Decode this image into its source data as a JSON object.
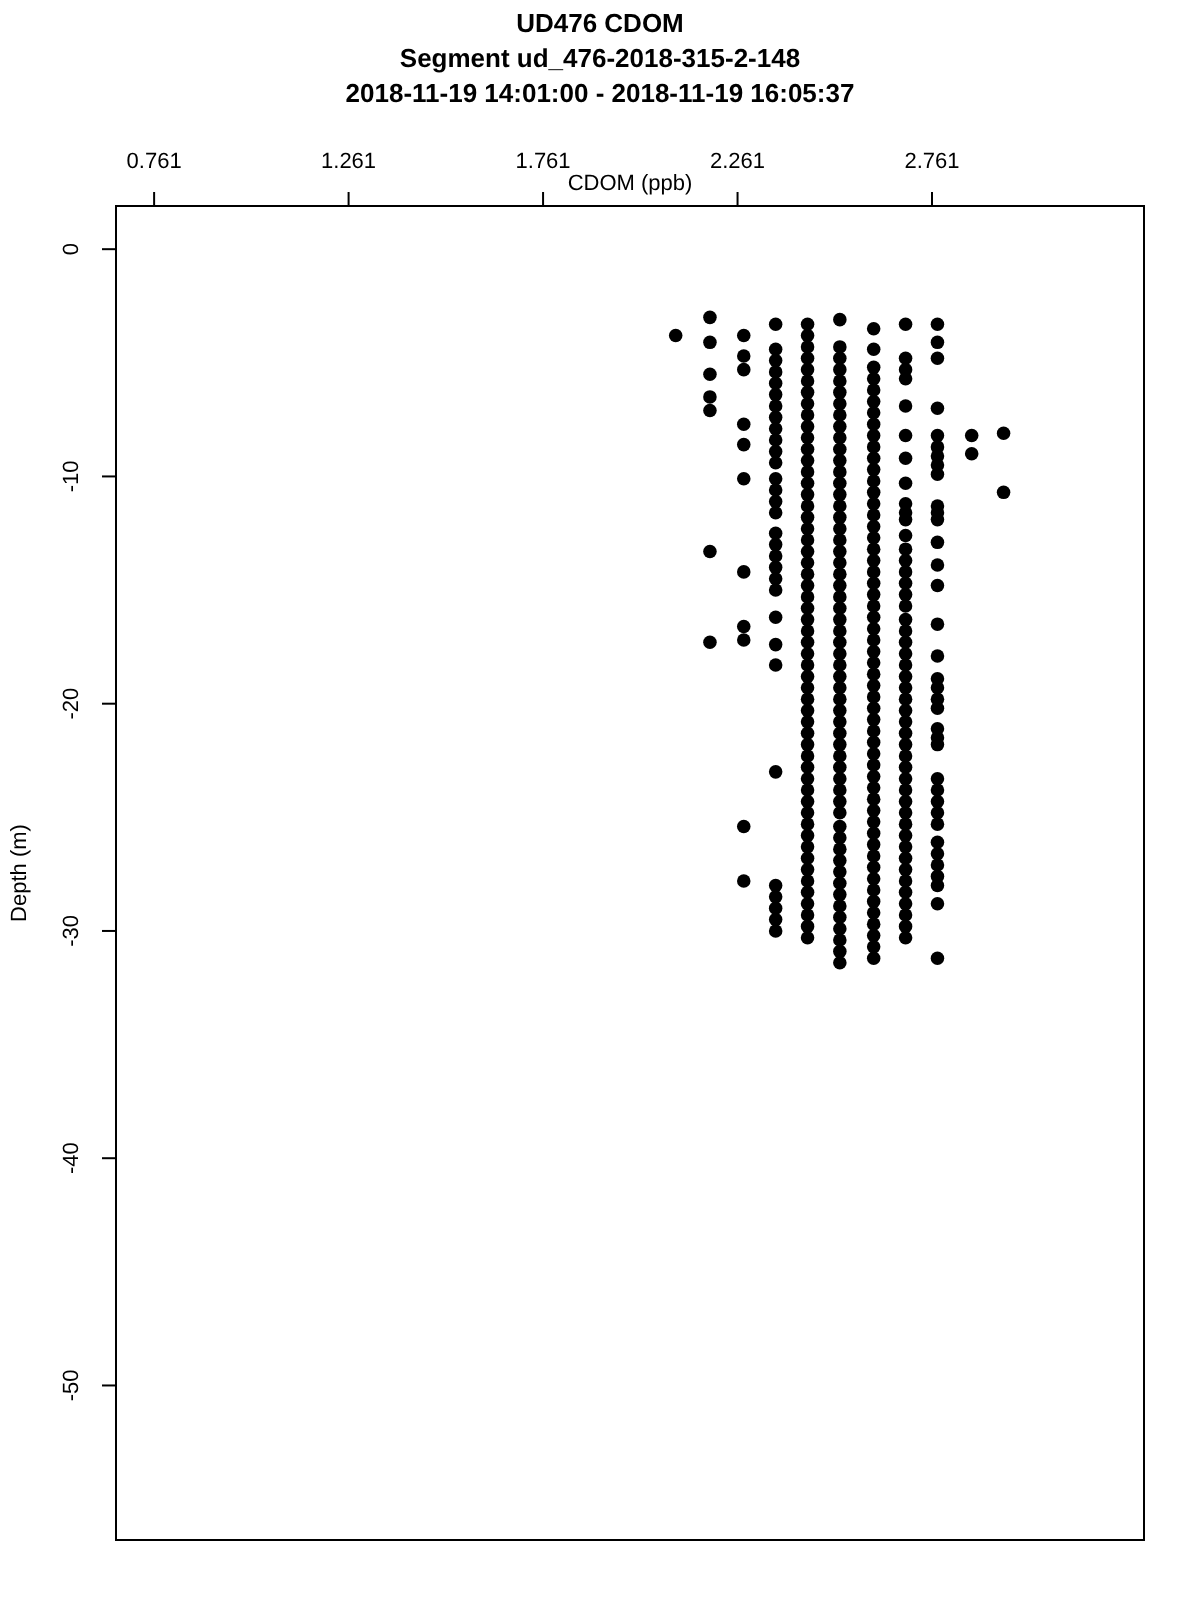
{
  "chart_data": {
    "type": "scatter",
    "title": "UD476 CDOM",
    "subtitle": "Segment ud_476-2018-315-2-148\n2018-11-19 14:01:00 - 2018-11-19 16:05:37",
    "xlabel": "CDOM (ppb)",
    "ylabel": "Depth (m)",
    "xlim": [
      0.663,
      3.306
    ],
    "xticks": [
      0.761,
      1.261,
      1.761,
      2.261,
      2.761
    ],
    "ylim": [
      -56.8,
      1.9
    ],
    "yticks": [
      0,
      -10,
      -20,
      -30,
      -40,
      -50
    ],
    "grid": false,
    "marker": "circle",
    "series": [
      {
        "color": "#000000",
        "x": [
          2.102
        ],
        "values": [
          -3.8
        ]
      },
      {
        "color": "#000000",
        "x": [
          2.19,
          2.19,
          2.19,
          2.19,
          2.19,
          2.19,
          2.19
        ],
        "values": [
          -3.0,
          -4.1,
          -5.5,
          -6.5,
          -7.1,
          -13.3,
          -17.3
        ]
      },
      {
        "color": "#000000",
        "x": [
          2.277,
          2.277,
          2.277,
          2.277,
          2.277,
          2.277,
          2.277,
          2.277,
          2.277,
          2.277,
          2.277
        ],
        "values": [
          -3.8,
          -4.7,
          -5.3,
          -7.7,
          -8.6,
          -10.1,
          -14.2,
          -16.6,
          -17.2,
          -25.4,
          -27.8
        ]
      },
      {
        "color": "#000000",
        "x": [
          2.359,
          2.359,
          2.359,
          2.359,
          2.359,
          2.359,
          2.359,
          2.359,
          2.359,
          2.359,
          2.359,
          2.359,
          2.359,
          2.359,
          2.359,
          2.359,
          2.359,
          2.359,
          2.359,
          2.359,
          2.359,
          2.359,
          2.359,
          2.359,
          2.359,
          2.359,
          2.359,
          2.359,
          2.359,
          2.359,
          2.359
        ],
        "values": [
          -3.3,
          -4.4,
          -4.9,
          -5.4,
          -5.9,
          -6.4,
          -6.9,
          -7.4,
          -7.9,
          -8.4,
          -8.9,
          -9.4,
          -10.1,
          -10.6,
          -11.1,
          -11.6,
          -12.5,
          -13.0,
          -13.5,
          -14.0,
          -14.5,
          -15.0,
          -16.2,
          -17.4,
          -18.3,
          -23.0,
          -28.0,
          -28.5,
          -29.0,
          -29.5,
          -30.0
        ]
      },
      {
        "color": "#000000",
        "x": [
          2.441,
          2.441,
          2.441,
          2.441,
          2.441,
          2.441,
          2.441,
          2.441,
          2.441,
          2.441,
          2.441,
          2.441,
          2.441,
          2.441,
          2.441,
          2.441,
          2.441,
          2.441,
          2.441,
          2.441,
          2.441,
          2.441,
          2.441,
          2.441,
          2.441,
          2.441,
          2.441,
          2.441,
          2.441,
          2.441,
          2.441,
          2.441,
          2.441,
          2.441,
          2.441,
          2.441,
          2.441,
          2.441,
          2.441,
          2.441,
          2.441,
          2.441,
          2.441,
          2.441,
          2.441,
          2.441,
          2.441,
          2.441,
          2.441,
          2.441,
          2.441,
          2.441,
          2.441,
          2.441,
          2.441
        ],
        "values": [
          -3.3,
          -3.8,
          -4.3,
          -4.8,
          -5.3,
          -5.8,
          -6.3,
          -6.8,
          -7.3,
          -7.8,
          -8.3,
          -8.8,
          -9.3,
          -9.8,
          -10.3,
          -10.8,
          -11.3,
          -11.8,
          -12.3,
          -12.8,
          -13.3,
          -13.8,
          -14.3,
          -14.8,
          -15.3,
          -15.8,
          -16.3,
          -16.8,
          -17.3,
          -17.8,
          -18.3,
          -18.8,
          -19.3,
          -19.8,
          -20.3,
          -20.8,
          -21.3,
          -21.8,
          -22.3,
          -22.8,
          -23.3,
          -23.8,
          -24.3,
          -24.8,
          -25.3,
          -25.8,
          -26.3,
          -26.8,
          -27.3,
          -27.8,
          -28.3,
          -28.8,
          -29.3,
          -29.8,
          -30.3
        ]
      },
      {
        "color": "#000000",
        "x": [
          2.524,
          2.524,
          2.524,
          2.524,
          2.524,
          2.524,
          2.524,
          2.524,
          2.524,
          2.524,
          2.524,
          2.524,
          2.524,
          2.524,
          2.524,
          2.524,
          2.524,
          2.524,
          2.524,
          2.524,
          2.524,
          2.524,
          2.524,
          2.524,
          2.524,
          2.524,
          2.524,
          2.524,
          2.524,
          2.524,
          2.524,
          2.524,
          2.524,
          2.524,
          2.524,
          2.524,
          2.524,
          2.524,
          2.524,
          2.524,
          2.524,
          2.524,
          2.524,
          2.524,
          2.524,
          2.524,
          2.524,
          2.524,
          2.524,
          2.524,
          2.524,
          2.524,
          2.524,
          2.524,
          2.524,
          2.524
        ],
        "values": [
          -3.1,
          -4.3,
          -4.8,
          -5.3,
          -5.8,
          -6.3,
          -6.8,
          -7.3,
          -7.8,
          -8.3,
          -8.8,
          -9.3,
          -9.8,
          -10.3,
          -10.8,
          -11.3,
          -11.8,
          -12.3,
          -12.8,
          -13.3,
          -13.8,
          -14.3,
          -14.8,
          -15.3,
          -15.8,
          -16.3,
          -16.8,
          -17.3,
          -17.8,
          -18.3,
          -18.8,
          -19.3,
          -19.8,
          -20.3,
          -20.8,
          -21.3,
          -21.8,
          -22.3,
          -22.8,
          -23.3,
          -23.8,
          -24.3,
          -24.8,
          -25.4,
          -25.9,
          -26.4,
          -26.9,
          -27.4,
          -27.9,
          -28.4,
          -28.9,
          -29.4,
          -29.9,
          -30.4,
          -30.9,
          -31.4
        ]
      },
      {
        "color": "#000000",
        "x": [
          2.611,
          2.611,
          2.611,
          2.611,
          2.611,
          2.611,
          2.611,
          2.611,
          2.611,
          2.611,
          2.611,
          2.611,
          2.611,
          2.611,
          2.611,
          2.611,
          2.611,
          2.611,
          2.611,
          2.611,
          2.611,
          2.611,
          2.611,
          2.611,
          2.611,
          2.611,
          2.611,
          2.611,
          2.611,
          2.611,
          2.611,
          2.611,
          2.611,
          2.611,
          2.611,
          2.611,
          2.611,
          2.611,
          2.611,
          2.611,
          2.611,
          2.611,
          2.611,
          2.611,
          2.611,
          2.611,
          2.611,
          2.611,
          2.611,
          2.611,
          2.611,
          2.611,
          2.611,
          2.611,
          2.611
        ],
        "values": [
          -3.5,
          -4.4,
          -5.2,
          -5.7,
          -6.2,
          -6.7,
          -7.2,
          -7.7,
          -8.2,
          -8.7,
          -9.2,
          -9.7,
          -10.2,
          -10.7,
          -11.2,
          -11.7,
          -12.2,
          -12.7,
          -13.2,
          -13.7,
          -14.2,
          -14.7,
          -15.2,
          -15.7,
          -16.2,
          -16.7,
          -17.2,
          -17.7,
          -18.2,
          -18.7,
          -19.2,
          -19.7,
          -20.2,
          -20.7,
          -21.2,
          -21.7,
          -22.2,
          -22.7,
          -23.2,
          -23.7,
          -24.2,
          -24.7,
          -25.2,
          -25.7,
          -26.2,
          -26.7,
          -27.2,
          -27.7,
          -28.2,
          -28.7,
          -29.2,
          -29.7,
          -30.2,
          -30.7,
          -31.2
        ]
      },
      {
        "color": "#000000",
        "x": [
          2.693,
          2.693,
          2.693,
          2.693,
          2.693,
          2.693,
          2.693,
          2.693,
          2.693,
          2.693,
          2.693,
          2.693,
          2.693,
          2.693,
          2.693,
          2.693,
          2.693,
          2.693,
          2.693,
          2.693,
          2.693,
          2.693,
          2.693,
          2.693,
          2.693,
          2.693,
          2.693,
          2.693,
          2.693,
          2.693,
          2.693,
          2.693,
          2.693,
          2.693,
          2.693,
          2.693,
          2.693,
          2.693,
          2.693,
          2.693,
          2.693,
          2.693,
          2.693,
          2.693,
          2.693,
          2.693,
          2.693
        ],
        "values": [
          -3.3,
          -4.8,
          -5.3,
          -5.7,
          -6.9,
          -8.2,
          -9.2,
          -10.3,
          -11.2,
          -11.6,
          -11.9,
          -12.6,
          -13.2,
          -13.7,
          -14.2,
          -14.7,
          -15.2,
          -15.7,
          -16.3,
          -16.8,
          -17.3,
          -17.8,
          -18.3,
          -18.8,
          -19.3,
          -19.8,
          -20.3,
          -20.8,
          -21.3,
          -21.8,
          -22.3,
          -22.8,
          -23.3,
          -23.8,
          -24.3,
          -24.8,
          -25.3,
          -25.8,
          -26.3,
          -26.8,
          -27.3,
          -27.8,
          -28.3,
          -28.8,
          -29.3,
          -29.8,
          -30.3
        ]
      },
      {
        "color": "#000000",
        "x": [
          2.775,
          2.775,
          2.775,
          2.775,
          2.775,
          2.775,
          2.775,
          2.775,
          2.775,
          2.775,
          2.775,
          2.775,
          2.775,
          2.775,
          2.775,
          2.775,
          2.775,
          2.775,
          2.775,
          2.775,
          2.775,
          2.775,
          2.775,
          2.775,
          2.775,
          2.775,
          2.775,
          2.775,
          2.775,
          2.775,
          2.775,
          2.775,
          2.775,
          2.775,
          2.775,
          2.775
        ],
        "values": [
          -3.3,
          -4.1,
          -4.8,
          -7.0,
          -8.2,
          -8.7,
          -9.1,
          -9.5,
          -9.9,
          -11.3,
          -11.6,
          -11.9,
          -12.9,
          -13.9,
          -14.8,
          -16.5,
          -17.9,
          -18.9,
          -19.3,
          -19.8,
          -20.2,
          -21.1,
          -21.5,
          -21.8,
          -23.3,
          -23.8,
          -24.3,
          -24.8,
          -25.3,
          -26.1,
          -26.6,
          -27.1,
          -27.6,
          -28.0,
          -28.8,
          -31.2
        ]
      },
      {
        "color": "#000000",
        "x": [
          2.863,
          2.863
        ],
        "values": [
          -8.2,
          -9.0
        ]
      },
      {
        "color": "#000000",
        "x": [
          2.945,
          2.945
        ],
        "values": [
          -8.1,
          -10.7
        ]
      }
    ]
  }
}
